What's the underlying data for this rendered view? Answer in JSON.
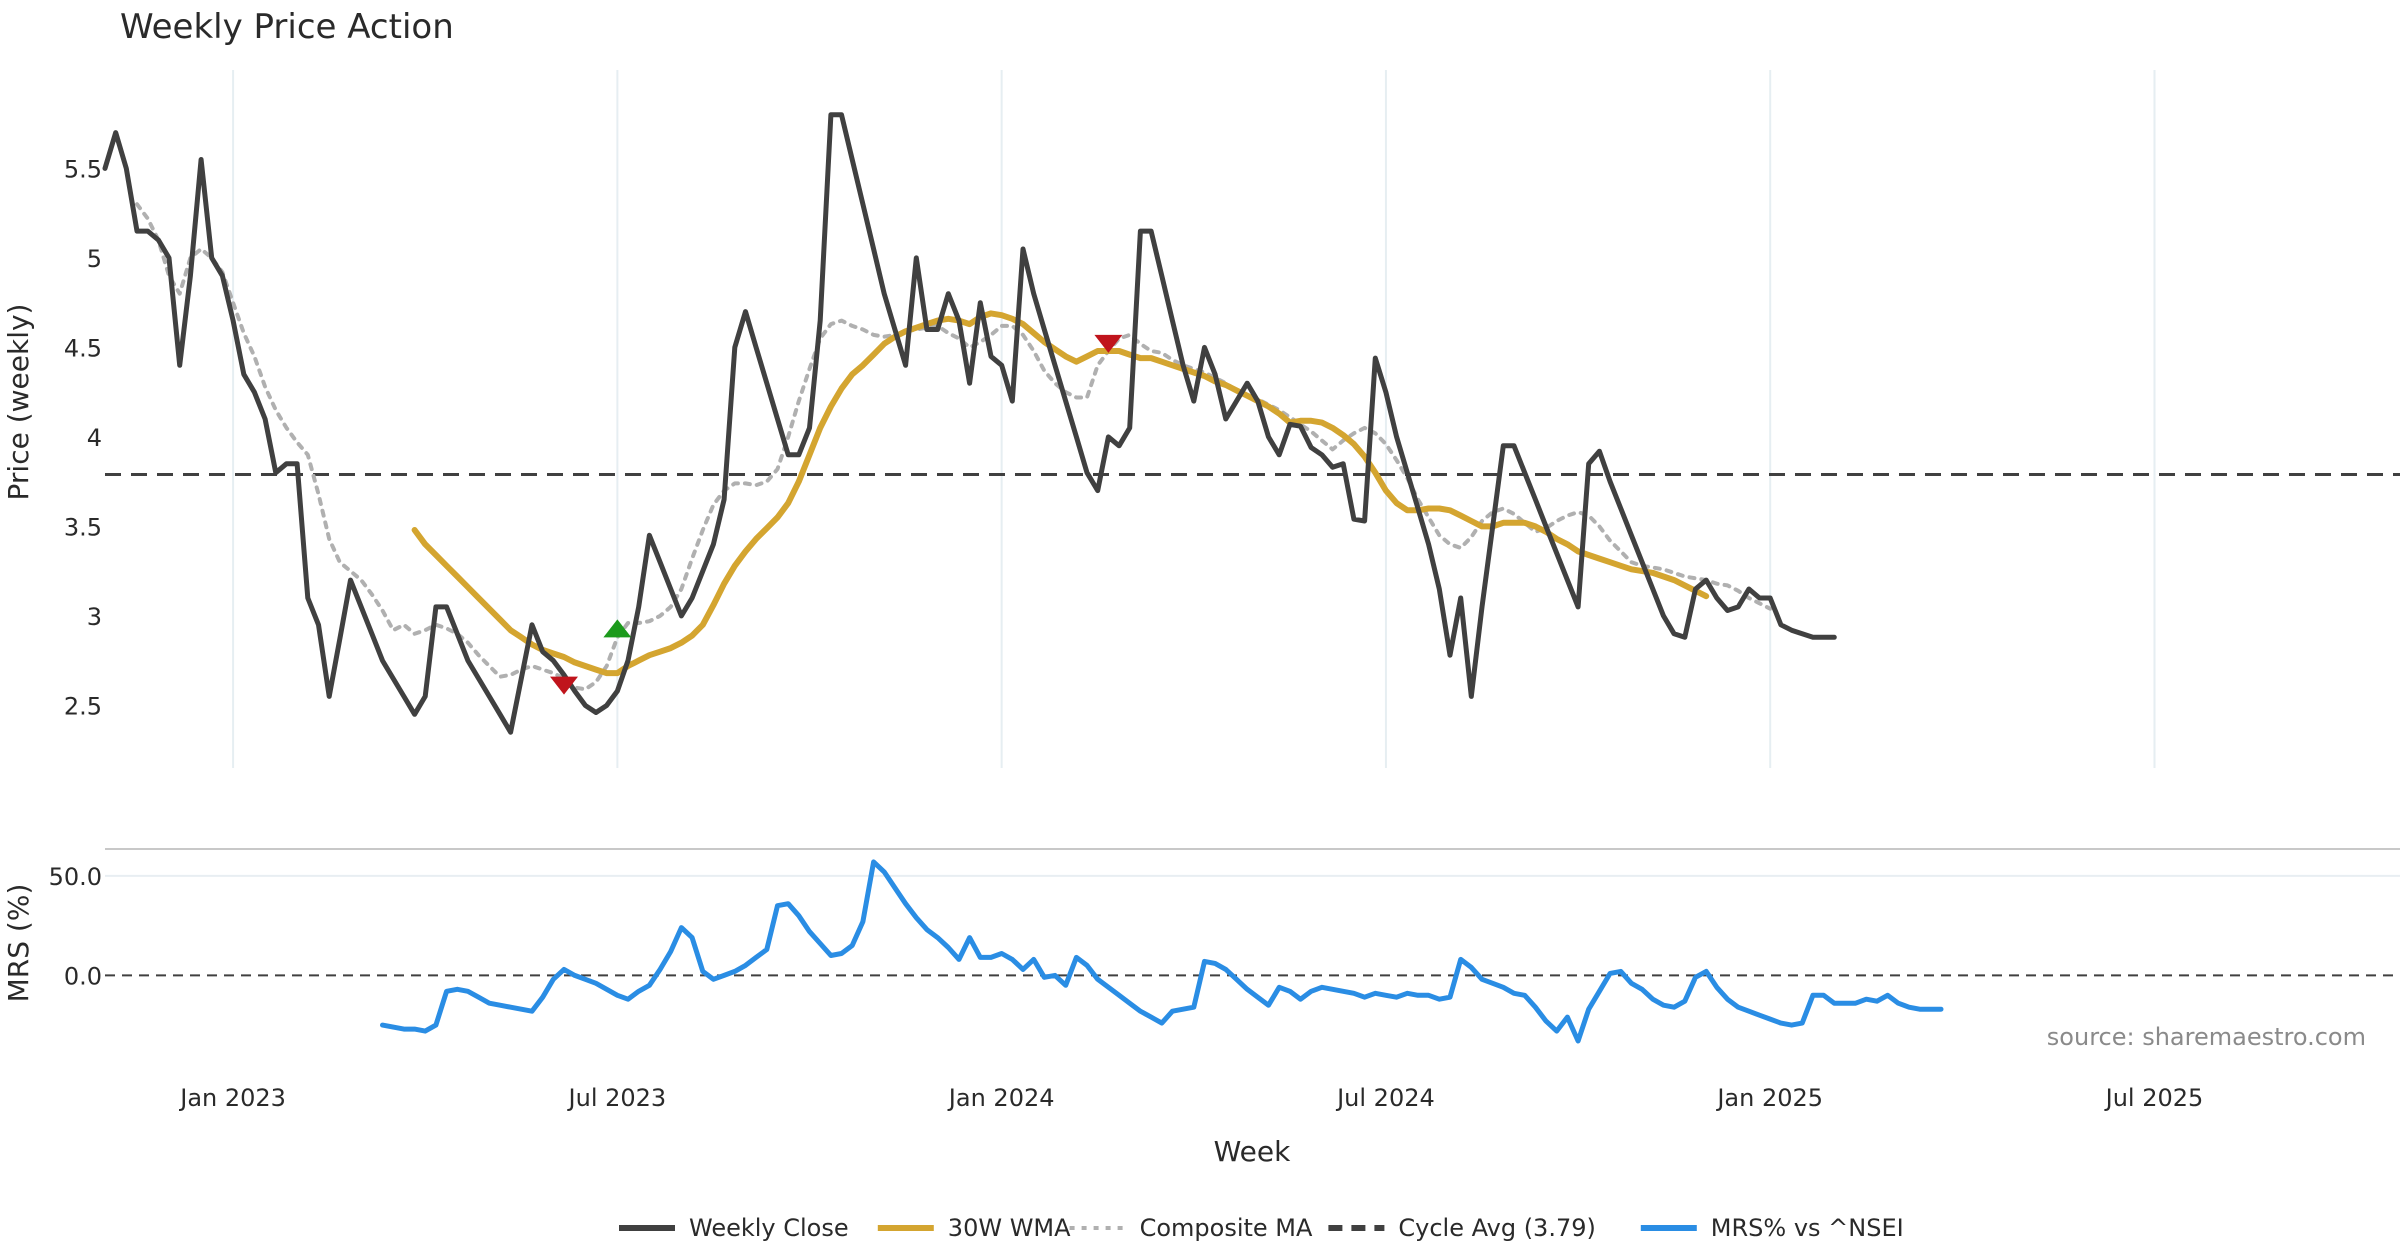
{
  "chart_data": {
    "type": "line",
    "title": "Weekly Price Action",
    "xlabel": "Week",
    "source": "source: sharemaestro.com",
    "x_ticks": [
      "Jan 2023",
      "Jul 2023",
      "Jan 2024",
      "Jul 2024",
      "Jan 2025",
      "Jul 2025"
    ],
    "x_tick_weeks": [
      12,
      48,
      84,
      120,
      156,
      192
    ],
    "x_range_weeks": [
      0,
      215
    ],
    "price_panel": {
      "ylabel": "Price (weekly)",
      "ylim": [
        2.15,
        6.05
      ],
      "y_ticks": [
        "2.5",
        "3",
        "3.5",
        "4",
        "4.5",
        "5",
        "5.5"
      ],
      "y_tick_values": [
        2.5,
        3,
        3.5,
        4,
        4.5,
        5,
        5.5
      ],
      "cycle_avg": 3.79,
      "series": [
        {
          "name": "Weekly Close",
          "color": "#404040",
          "style": "solid",
          "values": [
            5.5,
            5.7,
            5.5,
            5.15,
            5.15,
            5.1,
            5.0,
            4.4,
            4.9,
            5.55,
            5.0,
            4.9,
            4.65,
            4.35,
            4.25,
            4.1,
            3.8,
            3.85,
            3.85,
            3.1,
            2.95,
            2.55,
            2.87,
            3.2,
            3.05,
            2.9,
            2.75,
            2.65,
            2.55,
            2.45,
            2.55,
            3.05,
            3.05,
            2.9,
            2.75,
            2.65,
            2.55,
            2.45,
            2.35,
            2.65,
            2.95,
            2.8,
            2.75,
            2.67,
            2.58,
            2.5,
            2.46,
            2.5,
            2.58,
            2.75,
            3.05,
            3.45,
            3.3,
            3.15,
            3.0,
            3.1,
            3.25,
            3.4,
            3.65,
            4.5,
            4.7,
            4.5,
            4.3,
            4.1,
            3.9,
            3.9,
            4.05,
            4.65,
            5.8,
            5.8,
            5.55,
            5.3,
            5.05,
            4.8,
            4.6,
            4.4,
            5.0,
            4.6,
            4.6,
            4.8,
            4.65,
            4.3,
            4.75,
            4.45,
            4.4,
            4.2,
            5.05,
            4.8,
            4.6,
            4.4,
            4.2,
            4.0,
            3.8,
            3.7,
            4.0,
            3.95,
            4.05,
            5.15,
            5.15,
            4.9,
            4.65,
            4.4,
            4.2,
            4.5,
            4.35,
            4.1,
            4.2,
            4.3,
            4.2,
            4.0,
            3.9,
            4.07,
            4.06,
            3.94,
            3.9,
            3.83,
            3.85,
            3.54,
            3.53,
            4.44,
            4.25,
            4.0,
            3.8,
            3.6,
            3.4,
            3.15,
            2.78,
            3.1,
            2.55,
            3.05,
            3.5,
            3.95,
            3.95,
            3.8,
            3.65,
            3.5,
            3.35,
            3.2,
            3.05,
            3.85,
            3.92,
            3.75,
            3.6,
            3.45,
            3.3,
            3.15,
            3.0,
            2.9,
            2.88,
            3.15,
            3.2,
            3.1,
            3.03,
            3.05,
            3.15,
            3.1,
            3.1,
            2.95,
            2.92,
            2.9,
            2.88,
            2.88,
            2.88
          ]
        },
        {
          "name": "30W WMA",
          "color": "#d4a530",
          "style": "solid",
          "start_week": 29,
          "values": [
            3.48,
            3.4,
            3.34,
            3.28,
            3.22,
            3.16,
            3.1,
            3.04,
            2.98,
            2.92,
            2.88,
            2.84,
            2.81,
            2.79,
            2.77,
            2.74,
            2.72,
            2.7,
            2.68,
            2.68,
            2.72,
            2.75,
            2.78,
            2.8,
            2.82,
            2.85,
            2.89,
            2.95,
            3.06,
            3.18,
            3.28,
            3.36,
            3.43,
            3.49,
            3.55,
            3.63,
            3.75,
            3.9,
            4.05,
            4.17,
            4.27,
            4.35,
            4.4,
            4.46,
            4.52,
            4.56,
            4.59,
            4.61,
            4.63,
            4.65,
            4.66,
            4.65,
            4.63,
            4.67,
            4.69,
            4.68,
            4.66,
            4.63,
            4.58,
            4.53,
            4.49,
            4.45,
            4.42,
            4.45,
            4.48,
            4.48,
            4.48,
            4.46,
            4.44,
            4.44,
            4.42,
            4.4,
            4.38,
            4.36,
            4.34,
            4.31,
            4.29,
            4.26,
            4.23,
            4.2,
            4.17,
            4.13,
            4.08,
            4.09,
            4.09,
            4.08,
            4.05,
            4.01,
            3.96,
            3.89,
            3.8,
            3.7,
            3.63,
            3.59,
            3.59,
            3.6,
            3.6,
            3.59,
            3.56,
            3.53,
            3.5,
            3.5,
            3.52,
            3.52,
            3.52,
            3.5,
            3.47,
            3.43,
            3.4,
            3.36,
            3.34,
            3.32,
            3.3,
            3.28,
            3.26,
            3.25,
            3.24,
            3.22,
            3.2,
            3.17,
            3.14,
            3.11
          ]
        },
        {
          "name": "Composite MA",
          "color": "#b0b0b0",
          "style": "dotted",
          "start_week": 3,
          "values": [
            5.3,
            5.22,
            5.1,
            4.9,
            4.8,
            5.0,
            5.05,
            5.0,
            4.92,
            4.75,
            4.58,
            4.45,
            4.28,
            4.15,
            4.05,
            3.97,
            3.9,
            3.68,
            3.43,
            3.3,
            3.25,
            3.2,
            3.12,
            3.03,
            2.92,
            2.95,
            2.9,
            2.92,
            2.95,
            2.93,
            2.9,
            2.85,
            2.78,
            2.72,
            2.66,
            2.67,
            2.7,
            2.72,
            2.7,
            2.68,
            2.65,
            2.6,
            2.59,
            2.63,
            2.72,
            2.88,
            2.96,
            2.96,
            2.97,
            3.0,
            3.05,
            3.15,
            3.32,
            3.48,
            3.62,
            3.7,
            3.74,
            3.74,
            3.73,
            3.75,
            3.82,
            4.0,
            4.2,
            4.38,
            4.55,
            4.63,
            4.65,
            4.62,
            4.6,
            4.57,
            4.56,
            4.57,
            4.59,
            4.6,
            4.61,
            4.62,
            4.58,
            4.55,
            4.5,
            4.53,
            4.57,
            4.62,
            4.62,
            4.57,
            4.48,
            4.37,
            4.3,
            4.25,
            4.22,
            4.22,
            4.4,
            4.48,
            4.55,
            4.57,
            4.52,
            4.48,
            4.47,
            4.43,
            4.4,
            4.38,
            4.36,
            4.33,
            4.3,
            4.26,
            4.23,
            4.21,
            4.18,
            4.15,
            4.11,
            4.07,
            4.03,
            3.98,
            3.93,
            3.98,
            4.02,
            4.05,
            4.02,
            3.96,
            3.87,
            3.77,
            3.65,
            3.55,
            3.45,
            3.4,
            3.38,
            3.44,
            3.53,
            3.58,
            3.6,
            3.57,
            3.52,
            3.47,
            3.49,
            3.53,
            3.56,
            3.58,
            3.56,
            3.5,
            3.42,
            3.36,
            3.3,
            3.28,
            3.27,
            3.26,
            3.24,
            3.22,
            3.21,
            3.2,
            3.18,
            3.17,
            3.14,
            3.1,
            3.07,
            3.04
          ]
        }
      ],
      "markers": [
        {
          "type": "sell",
          "week": 43,
          "value": 2.61,
          "color": "#c0141c"
        },
        {
          "type": "buy",
          "week": 48,
          "value": 2.93,
          "color": "#1c9a1c"
        },
        {
          "type": "sell",
          "week": 94,
          "value": 4.52,
          "color": "#c0141c"
        }
      ]
    },
    "mrs_panel": {
      "ylabel": "MRS (%)",
      "ylim": [
        -35,
        63
      ],
      "y_ticks": [
        "0.0",
        "50.0"
      ],
      "y_tick_values": [
        0,
        50
      ],
      "zero_line": 0,
      "series": [
        {
          "name": "MRS% vs ^NSEI",
          "color": "#2a8de4",
          "style": "solid",
          "start_week": 26,
          "values": [
            -25,
            -26,
            -27,
            -27,
            -28,
            -25,
            -8,
            -7,
            -8,
            -11,
            -14,
            -15,
            -16,
            -17,
            -18,
            -11,
            -2,
            3,
            0,
            -2,
            -4,
            -7,
            -10,
            -12,
            -8,
            -5,
            3,
            12,
            24,
            19,
            2,
            -2,
            0,
            2,
            5,
            9,
            13,
            35,
            36,
            30,
            22,
            16,
            10,
            11,
            15,
            27,
            57,
            52,
            44,
            36,
            29,
            23,
            19,
            14,
            8,
            19,
            9,
            9,
            11,
            8,
            3,
            8,
            -1,
            0,
            -5,
            9,
            5,
            -2,
            -6,
            -10,
            -14,
            -18,
            -21,
            -24,
            -18,
            -17,
            -16,
            7,
            6,
            3,
            -2,
            -7,
            -11,
            -15,
            -6,
            -8,
            -12,
            -8,
            -6,
            -7,
            -8,
            -9,
            -11,
            -9,
            -10,
            -11,
            -9,
            -10,
            -10,
            -12,
            -11,
            8,
            4,
            -2,
            -4,
            -6,
            -9,
            -10,
            -16,
            -23,
            -28,
            -21,
            -33,
            -17,
            -8,
            1,
            2,
            -4,
            -7,
            -12,
            -15,
            -16,
            -13,
            -1,
            2,
            -6,
            -12,
            -16,
            -18,
            -20,
            -22,
            -24,
            -25,
            -24,
            -10,
            -10,
            -14,
            -14,
            -14,
            -12,
            -13,
            -10,
            -14,
            -16,
            -17,
            -17,
            -17
          ]
        }
      ]
    },
    "legend": [
      {
        "label": "Weekly Close",
        "color": "#404040",
        "style": "solid"
      },
      {
        "label": "30W WMA",
        "color": "#d4a530",
        "style": "solid"
      },
      {
        "label": "Composite MA",
        "color": "#b0b0b0",
        "style": "dotted"
      },
      {
        "label": "Cycle Avg (3.79)",
        "color": "#404040",
        "style": "dashed"
      },
      {
        "label": "MRS% vs ^NSEI",
        "color": "#2a8de4",
        "style": "solid"
      }
    ],
    "legend_position": "bottom-center"
  }
}
